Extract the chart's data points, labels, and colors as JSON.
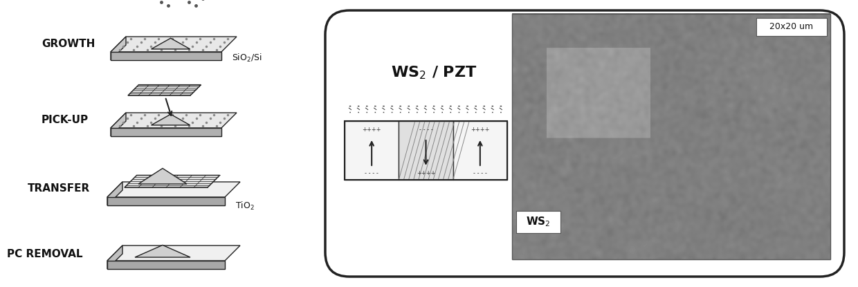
{
  "bg_color": "#ffffff",
  "left_labels": [
    "GROWTH",
    "PICK-UP",
    "TRANSFER",
    "PC REMOVAL"
  ],
  "right_labels": [
    "SiO₂/Si",
    "TiO₂"
  ],
  "ws2_pzt_label": "WS₂ / PZT",
  "scale_label": "20x20 um",
  "ws2_label": "WS₂",
  "arrow_color": "#000000",
  "plate_fill_dotted": "#e8e8e8",
  "plate_fill_circle": "#f0f0f0",
  "plate_fill_cross": "#d0d0d0",
  "panel_border_color": "#222222",
  "text_color": "#111111",
  "pzt_domain_colors": [
    "#f5f5f5",
    "#d8d8d8",
    "#f5f5f5"
  ],
  "sem_color_dark": "#888888",
  "sem_color_mid": "#aaaaaa",
  "sem_color_light": "#cccccc"
}
